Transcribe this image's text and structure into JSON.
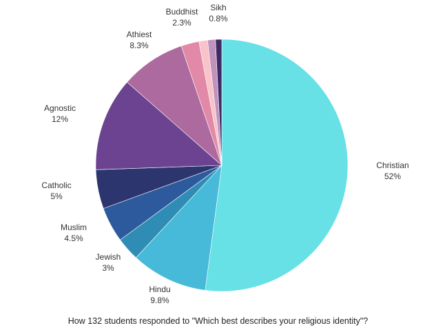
{
  "chart_data": {
    "type": "pie",
    "caption": "How  132 students responded to \"Which best describes your religious identity\"?",
    "slices": [
      {
        "name": "Christian",
        "label": "52%",
        "value": 52,
        "color": "#67e0e6"
      },
      {
        "name": "Hindu",
        "label": "9.8%",
        "value": 9.8,
        "color": "#46bad8"
      },
      {
        "name": "Jewish",
        "label": "3%",
        "value": 3,
        "color": "#2f8cb4"
      },
      {
        "name": "Muslim",
        "label": "4.5%",
        "value": 4.5,
        "color": "#2c5a9c"
      },
      {
        "name": "Catholic",
        "label": "5%",
        "value": 5,
        "color": "#2d356f"
      },
      {
        "name": "Agnostic",
        "label": "12%",
        "value": 12,
        "color": "#6c4390"
      },
      {
        "name": "Athiest",
        "label": "8.3%",
        "value": 8.3,
        "color": "#ad6a9f"
      },
      {
        "name": "Buddhist",
        "label": "2.3%",
        "value": 2.3,
        "color": "#e189a7"
      },
      {
        "name": "",
        "label": "",
        "value": 1.1,
        "color": "#f8c3c9"
      },
      {
        "name": "",
        "label": "",
        "value": 1.0,
        "color": "#bf93bd"
      },
      {
        "name": "Sikh",
        "label": "0.8%",
        "value": 0.8,
        "color": "#3f2a63"
      }
    ]
  }
}
